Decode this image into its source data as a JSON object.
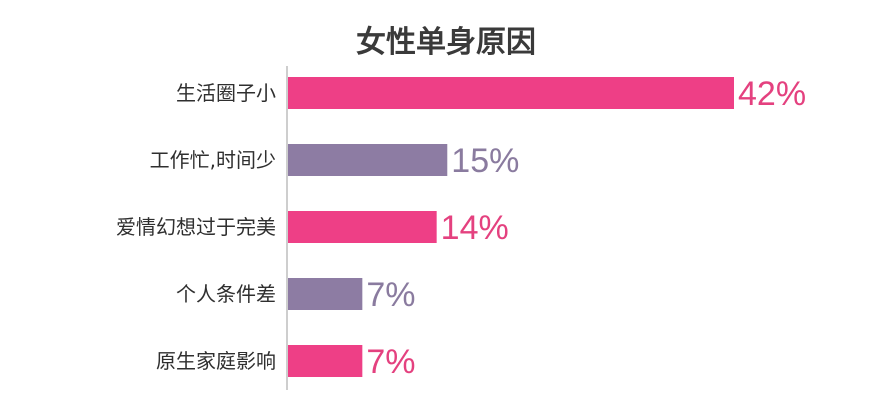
{
  "chart_data": {
    "type": "bar",
    "orientation": "horizontal",
    "title": "女性单身原因",
    "categories": [
      "生活圈子小",
      "工作忙,时间少",
      "爱情幻想过于完美",
      "个人条件差",
      "原生家庭影响"
    ],
    "values": [
      42,
      15,
      14,
      7,
      7
    ],
    "value_labels": [
      "42%",
      "15%",
      "14%",
      "7%",
      "7%"
    ],
    "colors": [
      "#ee3f86",
      "#8d7ca3",
      "#ee3f86",
      "#8d7ca3",
      "#ee3f86"
    ],
    "label_colors": [
      "#e4417f",
      "#8a7b9f",
      "#e4417f",
      "#8a7b9f",
      "#e4417f"
    ],
    "xlim": [
      0,
      42
    ],
    "xlabel": "",
    "ylabel": "",
    "grid": false,
    "legend": "none"
  }
}
